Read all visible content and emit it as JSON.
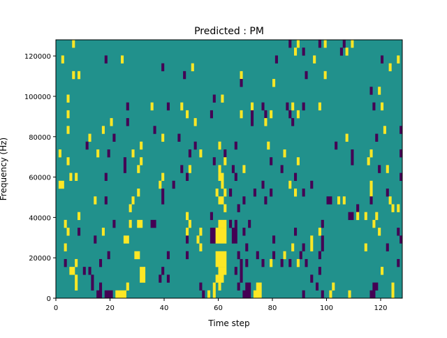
{
  "chart_data": {
    "type": "heatmap",
    "title": "Predicted : PM",
    "xlabel": "Time step",
    "ylabel": "Frequency (Hz)",
    "xlim": [
      0,
      128
    ],
    "ylim": [
      0,
      128000
    ],
    "freq_bins": 33,
    "xticks": [
      0,
      20,
      40,
      60,
      80,
      100,
      120
    ],
    "yticks": [
      0,
      20000,
      40000,
      60000,
      80000,
      100000,
      120000
    ],
    "colors": {
      "background": "#21918c",
      "high": "#fde725",
      "low": "#440154"
    },
    "cell_format": "[time_step, freq_bin_from_bottom, value(1=high,-1=low), steps_wide, bins_tall]",
    "cells": [
      [
        6,
        32,
        1
      ],
      [
        2,
        30,
        1
      ],
      [
        18,
        30,
        -1
      ],
      [
        24,
        30,
        1
      ],
      [
        39,
        29,
        -1
      ],
      [
        50,
        29,
        1
      ],
      [
        6,
        28,
        1
      ],
      [
        8,
        28,
        1
      ],
      [
        47,
        28,
        -1
      ],
      [
        4,
        25,
        1
      ],
      [
        58,
        25,
        -1
      ],
      [
        61,
        25,
        1
      ],
      [
        26,
        24,
        -1
      ],
      [
        35,
        24,
        1
      ],
      [
        41,
        24,
        -1
      ],
      [
        46,
        24,
        1
      ],
      [
        4,
        23,
        1
      ],
      [
        48,
        23,
        1
      ],
      [
        57,
        23,
        -1
      ],
      [
        20,
        22,
        1
      ],
      [
        26,
        22,
        -1
      ],
      [
        51,
        22,
        1
      ],
      [
        4,
        21,
        1
      ],
      [
        17,
        21,
        1
      ],
      [
        36,
        21,
        -1
      ],
      [
        12,
        20,
        1
      ],
      [
        21,
        20,
        -1
      ],
      [
        39,
        20,
        1
      ],
      [
        45,
        20,
        -1
      ],
      [
        11,
        19,
        -1
      ],
      [
        31,
        19,
        1
      ],
      [
        51,
        19,
        -1
      ],
      [
        60,
        19,
        1
      ],
      [
        1,
        18,
        1
      ],
      [
        15,
        18,
        1
      ],
      [
        19,
        18,
        -1
      ],
      [
        28,
        18,
        1
      ],
      [
        49,
        18,
        -1
      ],
      [
        53,
        18,
        1
      ],
      [
        62,
        18,
        -1
      ],
      [
        4,
        17,
        1
      ],
      [
        25,
        16,
        -1,
        1,
        2
      ],
      [
        31,
        17,
        1
      ],
      [
        58,
        17,
        -1
      ],
      [
        62,
        17,
        1
      ],
      [
        30,
        16,
        1
      ],
      [
        46,
        16,
        -1
      ],
      [
        49,
        16,
        1
      ],
      [
        60,
        16,
        1
      ],
      [
        5,
        15,
        1
      ],
      [
        7,
        15,
        1
      ],
      [
        18,
        15,
        -1
      ],
      [
        39,
        15,
        1
      ],
      [
        48,
        15,
        -1
      ],
      [
        60,
        15,
        1,
        2
      ],
      [
        1,
        14,
        1,
        2
      ],
      [
        38,
        14,
        1
      ],
      [
        43,
        14,
        -1
      ],
      [
        61,
        14,
        1
      ],
      [
        30,
        13,
        1
      ],
      [
        39,
        12,
        -1,
        1,
        2
      ],
      [
        59,
        13,
        1
      ],
      [
        62,
        13,
        1
      ],
      [
        64,
        13,
        -1
      ],
      [
        14,
        12,
        1
      ],
      [
        18,
        12,
        -1
      ],
      [
        28,
        12,
        1
      ],
      [
        60,
        12,
        1,
        2
      ],
      [
        27,
        11,
        1
      ],
      [
        62,
        11,
        1
      ],
      [
        8,
        10,
        1
      ],
      [
        48,
        10,
        1
      ],
      [
        57,
        10,
        -1
      ],
      [
        3,
        9,
        1
      ],
      [
        21,
        9,
        -1
      ],
      [
        27,
        9,
        1
      ],
      [
        30,
        9,
        1,
        2
      ],
      [
        35,
        9,
        -1,
        2
      ],
      [
        49,
        9,
        1
      ],
      [
        60,
        9,
        1,
        3
      ],
      [
        64,
        9,
        -1
      ],
      [
        4,
        8,
        1
      ],
      [
        8,
        8,
        -1
      ],
      [
        17,
        8,
        1
      ],
      [
        48,
        8,
        1
      ],
      [
        53,
        8,
        1
      ],
      [
        57,
        7,
        -1,
        2,
        2
      ],
      [
        59,
        7,
        1,
        4,
        2
      ],
      [
        14,
        7,
        -1
      ],
      [
        25,
        7,
        1,
        2
      ],
      [
        48,
        7,
        -1
      ],
      [
        52,
        7,
        1
      ],
      [
        3,
        6,
        1
      ],
      [
        53,
        6,
        1
      ],
      [
        19,
        5,
        -1
      ],
      [
        29,
        5,
        1,
        2
      ],
      [
        41,
        5,
        -1
      ],
      [
        48,
        5,
        -1
      ],
      [
        59,
        4,
        1,
        4,
        2
      ],
      [
        3,
        4,
        -1
      ],
      [
        7,
        4,
        1
      ],
      [
        16,
        4,
        -1
      ],
      [
        5,
        3,
        1,
        2
      ],
      [
        10,
        3,
        -1
      ],
      [
        12,
        3,
        -1
      ],
      [
        31,
        2,
        1,
        2,
        2
      ],
      [
        39,
        3,
        -1
      ],
      [
        60,
        3,
        1,
        3
      ],
      [
        7,
        1,
        1,
        1,
        2
      ],
      [
        13,
        1,
        -1,
        1,
        2
      ],
      [
        38,
        2,
        -1
      ],
      [
        41,
        2,
        -1
      ],
      [
        59,
        2,
        1,
        3
      ],
      [
        16,
        1,
        -1
      ],
      [
        26,
        1,
        1
      ],
      [
        53,
        1,
        -1
      ],
      [
        58,
        1,
        1
      ],
      [
        60,
        1,
        1
      ],
      [
        15,
        0,
        -1,
        2
      ],
      [
        18,
        0,
        -1,
        3
      ],
      [
        22,
        0,
        1,
        4
      ],
      [
        54,
        0,
        -1
      ],
      [
        56,
        0,
        1
      ],
      [
        58,
        0,
        1
      ],
      [
        86,
        32,
        -1
      ],
      [
        89,
        32,
        1
      ],
      [
        97,
        32,
        -1
      ],
      [
        99,
        32,
        1
      ],
      [
        106,
        32,
        -1
      ],
      [
        109,
        32,
        1
      ],
      [
        88,
        31,
        1
      ],
      [
        91,
        31,
        -1
      ],
      [
        105,
        31,
        -1
      ],
      [
        107,
        31,
        1
      ],
      [
        81,
        30,
        -1
      ],
      [
        95,
        30,
        1
      ],
      [
        120,
        30,
        -1
      ],
      [
        126,
        30,
        1
      ],
      [
        123,
        29,
        1
      ],
      [
        68,
        28,
        1
      ],
      [
        92,
        28,
        -1
      ],
      [
        99,
        28,
        1
      ],
      [
        68,
        27,
        -1
      ],
      [
        80,
        27,
        1
      ],
      [
        116,
        26,
        -1
      ],
      [
        119,
        26,
        1
      ],
      [
        72,
        24,
        1
      ],
      [
        76,
        24,
        -1
      ],
      [
        85,
        24,
        -1
      ],
      [
        87,
        24,
        1
      ],
      [
        91,
        24,
        -1
      ],
      [
        97,
        24,
        1
      ],
      [
        117,
        24,
        -1
      ],
      [
        120,
        24,
        1
      ],
      [
        68,
        23,
        1
      ],
      [
        72,
        22,
        -1,
        1,
        2
      ],
      [
        77,
        23,
        -1
      ],
      [
        79,
        23,
        1
      ],
      [
        86,
        23,
        -1
      ],
      [
        89,
        23,
        1
      ],
      [
        77,
        22,
        1
      ],
      [
        87,
        22,
        -1
      ],
      [
        121,
        21,
        1
      ],
      [
        127,
        21,
        -1
      ],
      [
        107,
        20,
        1
      ],
      [
        118,
        20,
        -1
      ],
      [
        66,
        19,
        -1
      ],
      [
        78,
        19,
        1
      ],
      [
        103,
        19,
        -1
      ],
      [
        84,
        18,
        1
      ],
      [
        109,
        17,
        -1,
        1,
        2
      ],
      [
        116,
        18,
        1
      ],
      [
        127,
        18,
        -1
      ],
      [
        79,
        17,
        -1
      ],
      [
        89,
        17,
        1
      ],
      [
        115,
        17,
        1
      ],
      [
        65,
        16,
        -1
      ],
      [
        69,
        16,
        1
      ],
      [
        83,
        16,
        -1
      ],
      [
        119,
        16,
        -1
      ],
      [
        122,
        16,
        1
      ],
      [
        66,
        15,
        -1
      ],
      [
        88,
        15,
        -1
      ],
      [
        127,
        15,
        -1
      ],
      [
        76,
        14,
        -1
      ],
      [
        86,
        14,
        1
      ],
      [
        94,
        14,
        -1
      ],
      [
        116,
        13,
        1,
        1,
        2
      ],
      [
        64,
        13,
        -1
      ],
      [
        73,
        13,
        -1
      ],
      [
        79,
        13,
        -1
      ],
      [
        88,
        13,
        1
      ],
      [
        91,
        13,
        -1
      ],
      [
        122,
        13,
        -1
      ],
      [
        69,
        12,
        -1
      ],
      [
        77,
        12,
        -1
      ],
      [
        100,
        12,
        -1,
        2
      ],
      [
        104,
        12,
        1
      ],
      [
        106,
        12,
        1
      ],
      [
        116,
        12,
        -1
      ],
      [
        123,
        12,
        1
      ],
      [
        67,
        11,
        -1
      ],
      [
        111,
        11,
        -1
      ],
      [
        124,
        11,
        1
      ],
      [
        126,
        11,
        1
      ],
      [
        108,
        10,
        -1,
        2
      ],
      [
        111,
        10,
        1
      ],
      [
        114,
        10,
        1
      ],
      [
        118,
        10,
        1
      ],
      [
        64,
        9,
        -1
      ],
      [
        66,
        9,
        -1
      ],
      [
        71,
        9,
        -1
      ],
      [
        98,
        9,
        -1
      ],
      [
        117,
        9,
        1
      ],
      [
        65,
        7,
        -1,
        2,
        2
      ],
      [
        69,
        8,
        -1
      ],
      [
        88,
        8,
        -1
      ],
      [
        97,
        8,
        1
      ],
      [
        119,
        8,
        1
      ],
      [
        126,
        8,
        -1
      ],
      [
        80,
        7,
        -1
      ],
      [
        94,
        6,
        1,
        1,
        2
      ],
      [
        98,
        6,
        -1,
        1,
        2
      ],
      [
        127,
        7,
        -1
      ],
      [
        70,
        6,
        -1
      ],
      [
        87,
        6,
        1
      ],
      [
        91,
        6,
        -1
      ],
      [
        114,
        6,
        1
      ],
      [
        122,
        6,
        -1
      ],
      [
        67,
        5,
        -1
      ],
      [
        74,
        5,
        -1
      ],
      [
        80,
        5,
        -1
      ],
      [
        84,
        5,
        1
      ],
      [
        90,
        5,
        -1
      ],
      [
        97,
        5,
        -1
      ],
      [
        68,
        4,
        -1
      ],
      [
        70,
        4,
        -1
      ],
      [
        76,
        4,
        -1
      ],
      [
        79,
        4,
        1
      ],
      [
        83,
        4,
        -1
      ],
      [
        86,
        4,
        -1
      ],
      [
        89,
        4,
        1
      ],
      [
        92,
        4,
        -1
      ],
      [
        126,
        4,
        -1
      ],
      [
        66,
        3,
        -1
      ],
      [
        68,
        2,
        -1,
        1,
        2
      ],
      [
        97,
        3,
        -1
      ],
      [
        120,
        3,
        1
      ],
      [
        94,
        2,
        -1
      ],
      [
        67,
        1,
        -1
      ],
      [
        70,
        1,
        -1,
        2
      ],
      [
        74,
        1,
        1,
        2
      ],
      [
        96,
        1,
        -1
      ],
      [
        102,
        1,
        1
      ],
      [
        117,
        1,
        -1,
        2
      ],
      [
        124,
        1,
        1
      ],
      [
        69,
        0,
        -1,
        3
      ],
      [
        73,
        0,
        1,
        3
      ],
      [
        91,
        0,
        -1
      ],
      [
        98,
        0,
        -1
      ],
      [
        101,
        0,
        1
      ],
      [
        108,
        0,
        1
      ],
      [
        116,
        0,
        -1,
        2
      ],
      [
        124,
        0,
        1
      ]
    ]
  }
}
